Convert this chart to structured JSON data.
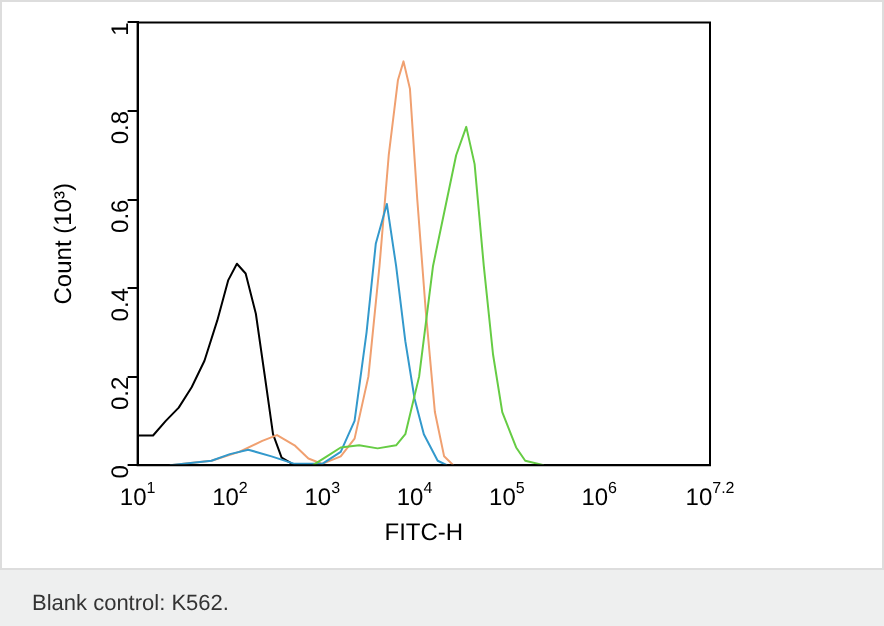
{
  "chart_data": {
    "type": "line",
    "xlabel": "FITC-H",
    "ylabel": "Count (10³)",
    "log": "x",
    "grid": false,
    "legend": false,
    "marker": "none",
    "line_style": "solid",
    "xlim": [
      10,
      15848932
    ],
    "ylim": [
      0,
      1
    ],
    "xticks": [
      {
        "value": 10,
        "label": "10$^{1}$"
      },
      {
        "value": 100,
        "label": "10$^{2}$"
      },
      {
        "value": 1000,
        "label": "10$^{3}$"
      },
      {
        "value": 10000,
        "label": "10$^{4}$"
      },
      {
        "value": 100000,
        "label": "10$^{5}$"
      },
      {
        "value": 1000000,
        "label": "10$^{6}$"
      },
      {
        "value": 15848932,
        "label": "10$^{7.2}$"
      }
    ],
    "yticks": [
      0,
      0.2,
      0.4,
      0.6,
      0.8,
      1
    ],
    "annotations": [
      "Blank control: K562."
    ],
    "series": [
      {
        "color": "#000000",
        "x": [
          10,
          14.7,
          20.2,
          27.9,
          38.5,
          53,
          73,
          96,
          119,
          148,
          191,
          237,
          293,
          363,
          500
        ],
        "values": [
          0.067,
          0.067,
          0.1,
          0.13,
          0.176,
          0.236,
          0.327,
          0.418,
          0.455,
          0.433,
          0.342,
          0.206,
          0.07,
          0.017,
          0
        ]
      },
      {
        "color": "#f0a070",
        "x": [
          22.4,
          63.1,
          126,
          224,
          324,
          501,
          708,
          1000,
          1585,
          2240,
          3160,
          4170,
          5250,
          6610,
          7590,
          8910,
          10700,
          13200,
          16600,
          20900,
          26300
        ],
        "values": [
          0,
          0.01,
          0.03,
          0.055,
          0.068,
          0.045,
          0.015,
          0.003,
          0.02,
          0.06,
          0.2,
          0.45,
          0.7,
          0.87,
          0.912,
          0.85,
          0.6,
          0.35,
          0.12,
          0.02,
          0
        ]
      },
      {
        "color": "#3399cc",
        "x": [
          22.4,
          63.1,
          100,
          158,
          282,
          501,
          1000,
          1585,
          2240,
          3020,
          3800,
          5010,
          6310,
          7940,
          10000,
          12600,
          17800,
          22400
        ],
        "values": [
          0,
          0.01,
          0.025,
          0.035,
          0.02,
          0.003,
          0.003,
          0.03,
          0.1,
          0.3,
          0.5,
          0.59,
          0.45,
          0.28,
          0.15,
          0.07,
          0.01,
          0
        ]
      },
      {
        "color": "#66cc44",
        "x": [
          794,
          1122,
          1585,
          2510,
          3980,
          6310,
          7940,
          11200,
          15850,
          22400,
          28200,
          36300,
          44700,
          56200,
          70800,
          89100,
          126000,
          158000,
          251000
        ],
        "values": [
          0,
          0.02,
          0.04,
          0.045,
          0.038,
          0.045,
          0.07,
          0.2,
          0.45,
          0.6,
          0.7,
          0.764,
          0.68,
          0.45,
          0.25,
          0.12,
          0.04,
          0.01,
          0
        ]
      }
    ]
  }
}
